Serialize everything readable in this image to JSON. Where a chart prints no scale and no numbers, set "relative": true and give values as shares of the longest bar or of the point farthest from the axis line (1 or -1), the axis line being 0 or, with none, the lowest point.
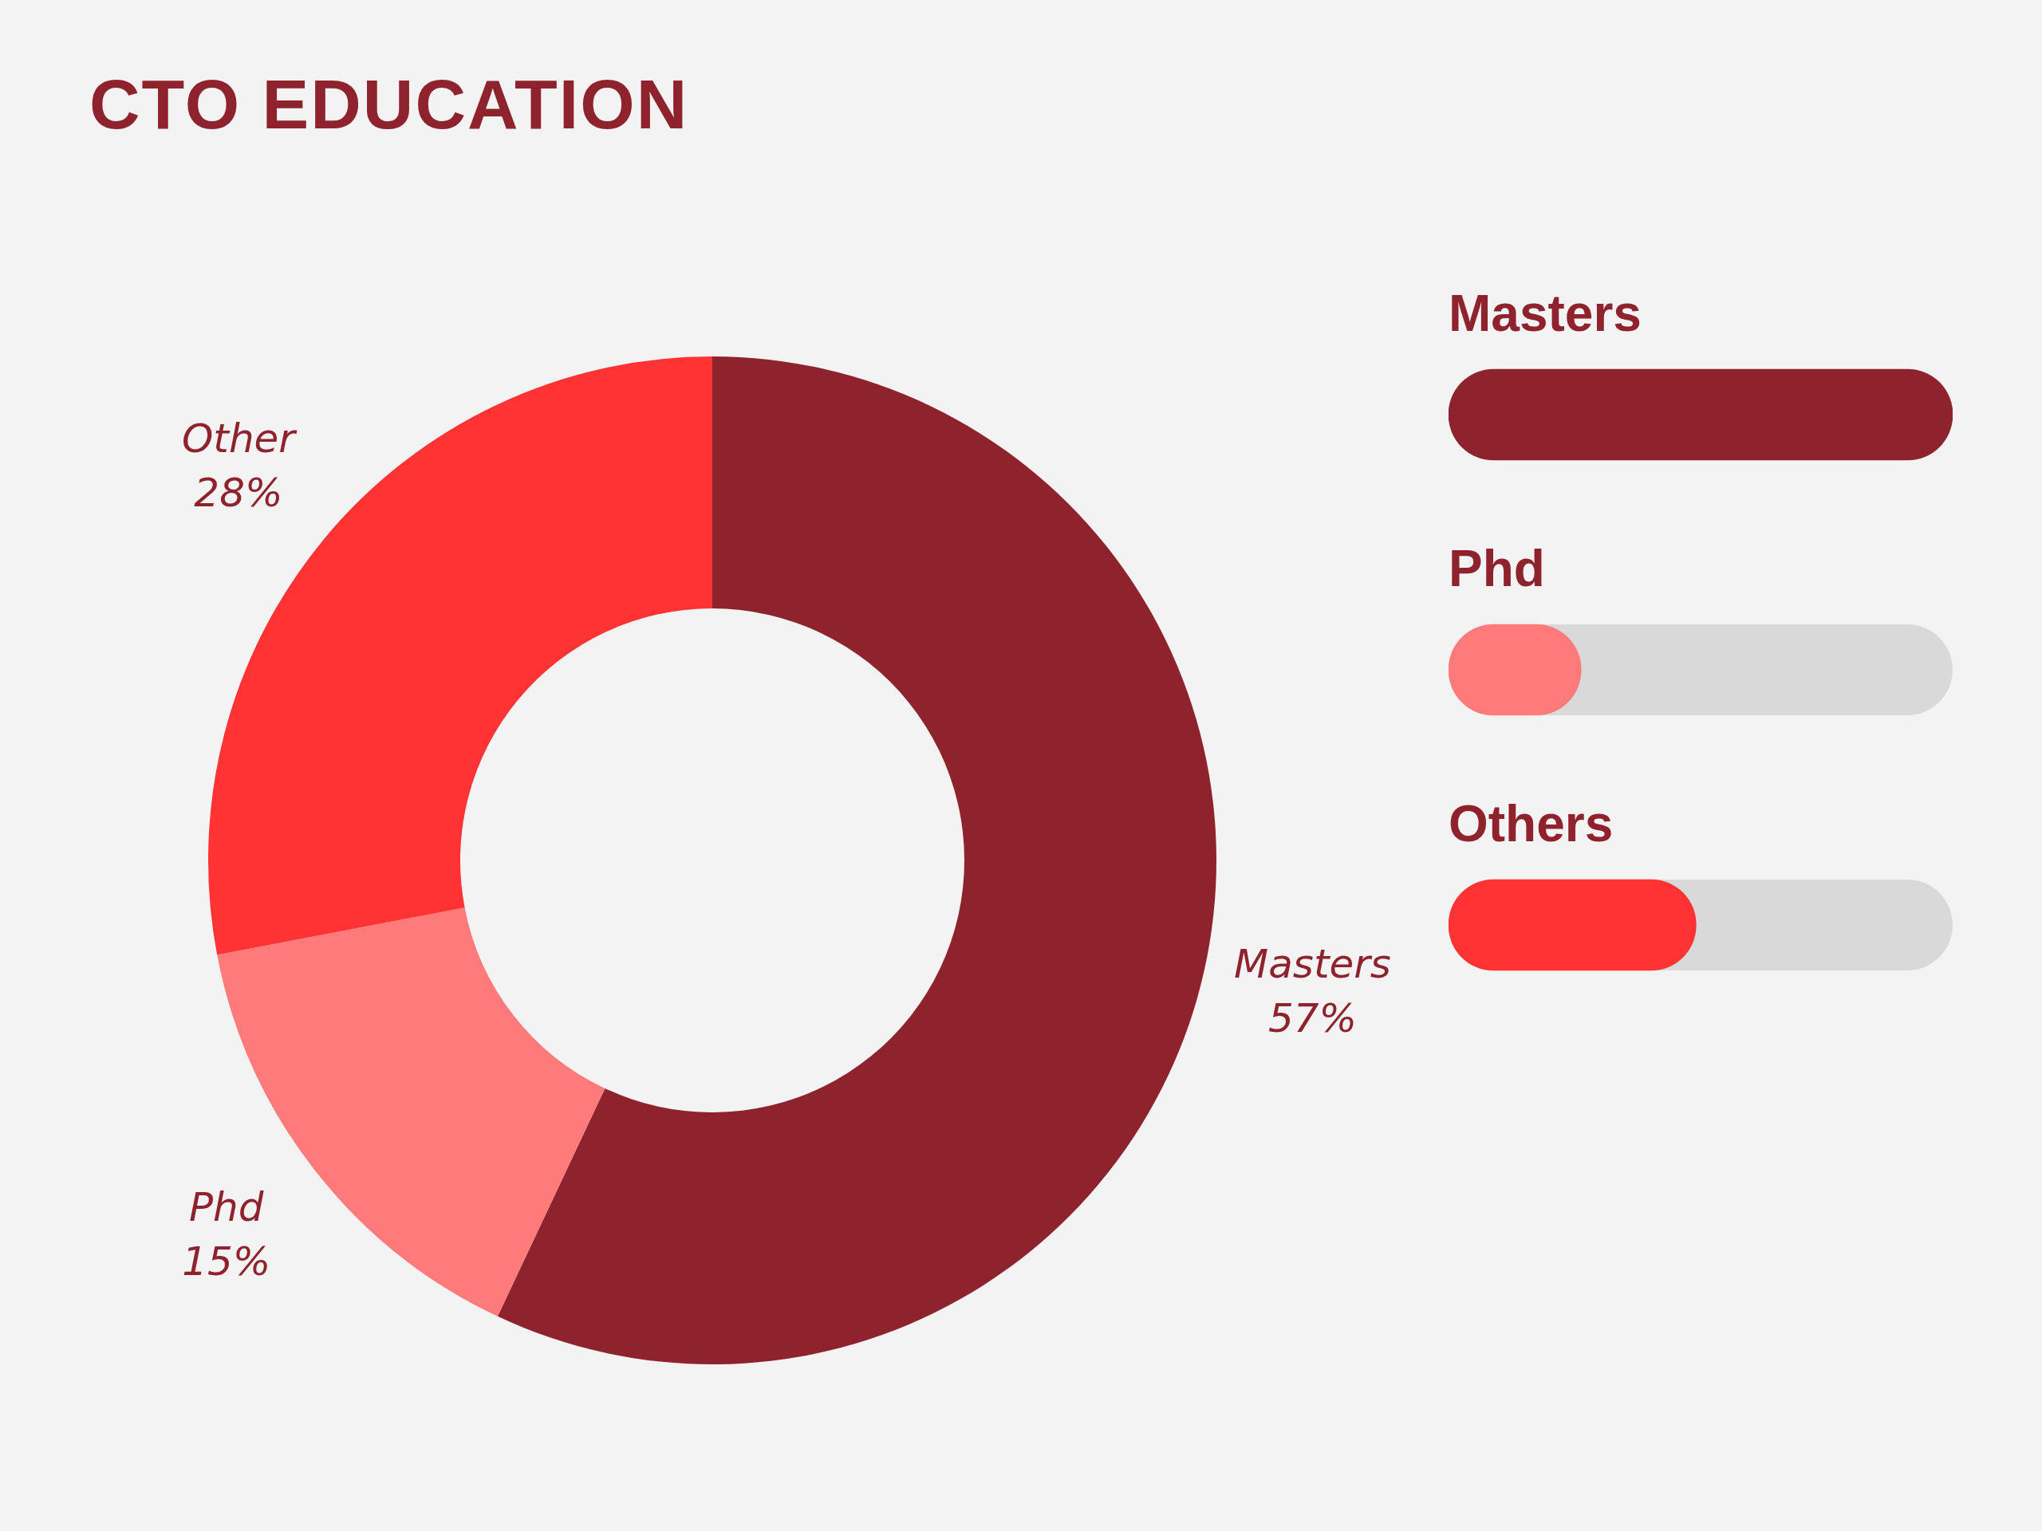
{
  "chart_data": [
    {
      "type": "donut",
      "title": "CTO EDUCATION",
      "categories": [
        "Masters",
        "Phd",
        "Other"
      ],
      "values": [
        57,
        15,
        28
      ],
      "value_labels": [
        "57%",
        "15%",
        "28%"
      ],
      "colors": [
        "#8e232e",
        "#ff7a7a",
        "#ff3333"
      ],
      "legend": false
    },
    {
      "type": "bar",
      "orientation": "horizontal",
      "relative": true,
      "categories": [
        "Masters",
        "Phd",
        "Others"
      ],
      "values": [
        1,
        0.263,
        0.491
      ],
      "colors": [
        "#8e232e",
        "#ff7a7a",
        "#ff3333"
      ],
      "legend": false
    }
  ]
}
